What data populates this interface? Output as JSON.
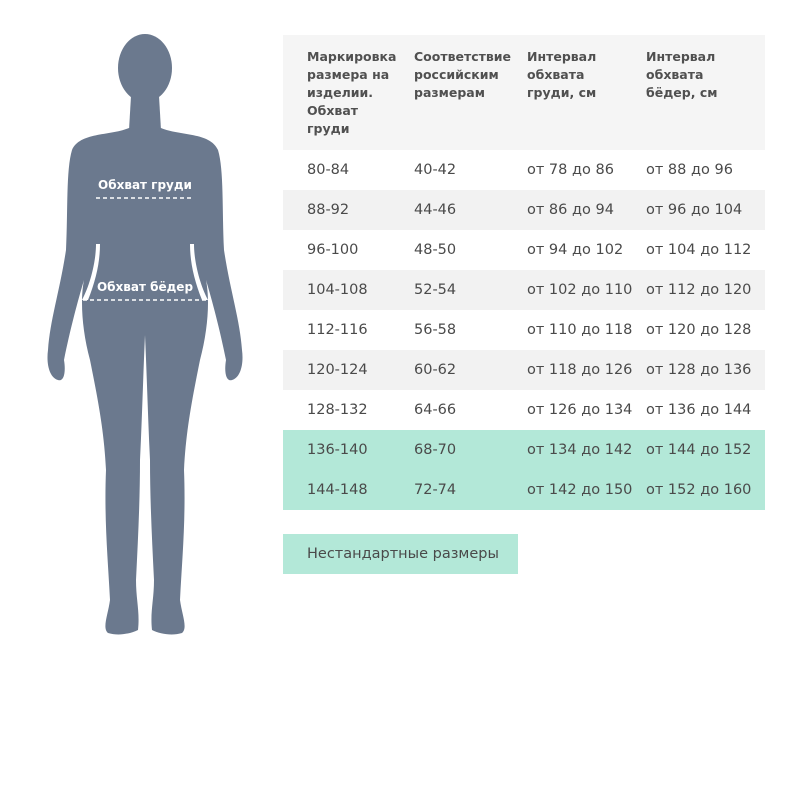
{
  "figure": {
    "chest_label": "Обхват груди",
    "hips_label": "Обхват бёдер",
    "body_color": "#6b798e"
  },
  "table": {
    "headers": [
      "Маркировка размера на изделии. Обхват груди",
      "Соответствие российским размерам",
      "Интервал обхвата груди, см",
      "Интервал обхвата бёдер, см"
    ],
    "rows": [
      [
        "80-84",
        "40-42",
        "от 78 до 86",
        "от 88 до 96"
      ],
      [
        "88-92",
        "44-46",
        "от 86 до 94",
        "от 96 до 104"
      ],
      [
        "96-100",
        "48-50",
        "от 94 до 102",
        "от 104 до 112"
      ],
      [
        "104-108",
        "52-54",
        "от 102 до 110",
        "от 112 до 120"
      ],
      [
        "112-116",
        "56-58",
        "от 110 до 118",
        "от 120 до 128"
      ],
      [
        "120-124",
        "60-62",
        "от 118 до 126",
        "от 128 до 136"
      ],
      [
        "128-132",
        "64-66",
        "от 126 до 134",
        "от 136 до 144"
      ],
      [
        "136-140",
        "68-70",
        "от 134 до 142",
        "от 144 до 152"
      ],
      [
        "144-148",
        "72-74",
        "от 142 до 150",
        "от 152 до 160"
      ]
    ],
    "highlighted_rows": [
      7,
      8
    ],
    "highlight_color": "#b3e8d8"
  },
  "nonstandard_button": "Нестандартные размеры"
}
